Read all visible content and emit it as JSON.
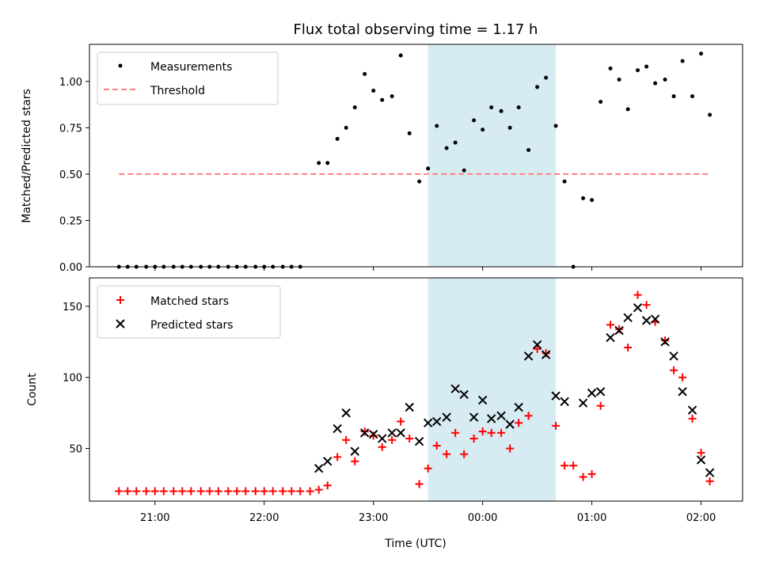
{
  "chart_data": {
    "type": "scatter",
    "title": "Flux total observing time = 1.17 h",
    "xlabel": "Time (UTC)",
    "x_ticks": [
      "21:00",
      "22:00",
      "23:00",
      "00:00",
      "01:00",
      "02:00"
    ],
    "x_tick_hours": [
      21,
      22,
      23,
      24,
      25,
      26
    ],
    "xlim": [
      20.4,
      26.38
    ],
    "shaded_region": [
      23.5,
      24.67
    ],
    "shade_color": "#add8e6",
    "panels": [
      {
        "ylabel": "Matched/Predicted stars",
        "ylim": [
          0,
          1.2
        ],
        "yticks": [
          "0.00",
          "0.25",
          "0.50",
          "0.75",
          "1.00"
        ],
        "ytick_values": [
          0,
          0.25,
          0.5,
          0.75,
          1.0
        ],
        "legend": [
          "Measurements",
          "Threshold"
        ],
        "legend_position": "upper-left",
        "threshold": {
          "name": "Threshold",
          "y": 0.5,
          "x_range": [
            20.67,
            26.08
          ],
          "color": "#ff7f7f"
        },
        "series": [
          {
            "name": "Measurements",
            "color": "#000000",
            "x": [
              20.67,
              20.75,
              20.83,
              20.92,
              21.0,
              21.08,
              21.17,
              21.25,
              21.33,
              21.42,
              21.5,
              21.58,
              21.67,
              21.75,
              21.83,
              21.92,
              22.0,
              22.08,
              22.17,
              22.25,
              22.33,
              22.5,
              22.58,
              22.67,
              22.75,
              22.83,
              22.92,
              23.0,
              23.08,
              23.17,
              23.25,
              23.33,
              23.42,
              23.5,
              23.58,
              23.67,
              23.75,
              23.83,
              23.92,
              24.0,
              24.08,
              24.17,
              24.25,
              24.33,
              24.42,
              24.5,
              24.58,
              24.67,
              24.75,
              24.83,
              24.92,
              25.0,
              25.08,
              25.17,
              25.25,
              25.33,
              25.42,
              25.5,
              25.58,
              25.67,
              25.75,
              25.83,
              25.92,
              26.0,
              26.08
            ],
            "y": [
              0,
              0,
              0,
              0,
              0,
              0,
              0,
              0,
              0,
              0,
              0,
              0,
              0,
              0,
              0,
              0,
              0,
              0,
              0,
              0,
              0,
              0.56,
              0.56,
              0.69,
              0.75,
              0.86,
              1.04,
              0.95,
              0.9,
              0.92,
              1.14,
              0.72,
              0.46,
              0.53,
              0.76,
              0.64,
              0.67,
              0.52,
              0.79,
              0.74,
              0.86,
              0.84,
              0.75,
              0.86,
              0.63,
              0.97,
              1.02,
              0.76,
              0.46,
              0,
              0.37,
              0.36,
              0.89,
              1.07,
              1.01,
              0.85,
              1.06,
              1.08,
              0.99,
              1.01,
              0.92,
              1.11,
              0.92,
              1.15,
              0.82
            ]
          }
        ]
      },
      {
        "ylabel": "Count",
        "ylim": [
          13,
          170
        ],
        "yticks": [
          "50",
          "100",
          "150"
        ],
        "ytick_values": [
          50,
          100,
          150
        ],
        "legend": [
          "Matched stars",
          "Predicted stars"
        ],
        "legend_position": "upper-left",
        "series": [
          {
            "name": "Matched stars",
            "marker": "plus",
            "color": "#ff0000",
            "x": [
              20.67,
              20.75,
              20.83,
              20.92,
              21.0,
              21.08,
              21.17,
              21.25,
              21.33,
              21.42,
              21.5,
              21.58,
              21.67,
              21.75,
              21.83,
              21.92,
              22.0,
              22.08,
              22.17,
              22.25,
              22.33,
              22.42,
              22.5,
              22.58,
              22.67,
              22.75,
              22.83,
              22.92,
              23.0,
              23.08,
              23.17,
              23.25,
              23.33,
              23.42,
              23.5,
              23.58,
              23.67,
              23.75,
              23.83,
              23.92,
              24.0,
              24.08,
              24.17,
              24.25,
              24.33,
              24.42,
              24.5,
              24.58,
              24.67,
              24.75,
              24.83,
              24.92,
              25.0,
              25.08,
              25.17,
              25.25,
              25.33,
              25.42,
              25.5,
              25.58,
              25.67,
              25.75,
              25.83,
              25.92,
              26.0,
              26.08
            ],
            "y": [
              20,
              20,
              20,
              20,
              20,
              20,
              20,
              20,
              20,
              20,
              20,
              20,
              20,
              20,
              20,
              20,
              20,
              20,
              20,
              20,
              20,
              20,
              21,
              24,
              44,
              56,
              41,
              62,
              59,
              51,
              56,
              69,
              57,
              25,
              36,
              52,
              46,
              61,
              46,
              57,
              62,
              61,
              61,
              50,
              68,
              73,
              120,
              117,
              66,
              38,
              38,
              30,
              32,
              80,
              137,
              134,
              121,
              158,
              151,
              139,
              126,
              105,
              100,
              71,
              47,
              27
            ]
          },
          {
            "name": "Predicted stars",
            "marker": "x",
            "color": "#000000",
            "x": [
              22.5,
              22.58,
              22.67,
              22.75,
              22.83,
              22.92,
              23.0,
              23.08,
              23.17,
              23.25,
              23.33,
              23.42,
              23.5,
              23.58,
              23.67,
              23.75,
              23.83,
              23.92,
              24.0,
              24.08,
              24.17,
              24.25,
              24.33,
              24.42,
              24.5,
              24.58,
              24.67,
              24.75,
              24.92,
              25.0,
              25.08,
              25.17,
              25.25,
              25.33,
              25.42,
              25.5,
              25.58,
              25.67,
              25.75,
              25.83,
              25.92,
              26.0,
              26.08
            ],
            "y": [
              36,
              41,
              64,
              75,
              48,
              61,
              60,
              57,
              61,
              61,
              79,
              55,
              68,
              69,
              72,
              92,
              88,
              72,
              84,
              71,
              73,
              67,
              79,
              115,
              123,
              116,
              87,
              83,
              82,
              89,
              90,
              128,
              133,
              142,
              149,
              140,
              141,
              125,
              115,
              90,
              77,
              42,
              33
            ]
          }
        ]
      }
    ]
  }
}
